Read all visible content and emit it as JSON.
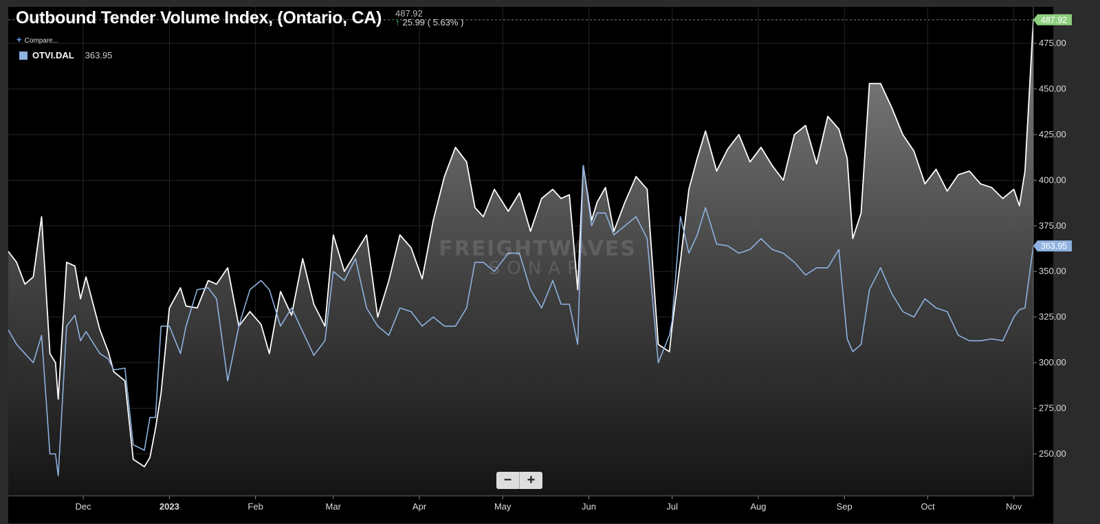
{
  "header": {
    "title": "Outbound Tender Volume Index, (Ontario, CA)",
    "last_value": "487.92",
    "change": "25.99",
    "change_pct": "( 5.63% )",
    "compare_label": "Compare..."
  },
  "legend": {
    "symbol": "OTVI.DAL",
    "value": "363.95"
  },
  "watermark": {
    "line1": "FREIGHTWAVES",
    "line2": "SONAR"
  },
  "zoom": {
    "minus": "−",
    "plus": "+"
  },
  "colors": {
    "background": "#000000",
    "primary_line": "#ffffff",
    "secondary_line": "#8fb2e0",
    "last_tag": "#8fcf80",
    "secondary_tag": "#8fb2e0"
  },
  "chart_data": {
    "type": "area",
    "title": "Outbound Tender Volume Index, (Ontario, CA)",
    "y_axis_position": "right",
    "ylim": [
      227,
      495
    ],
    "y_ticks": [
      250,
      275,
      300,
      325,
      350,
      375,
      400,
      425,
      450,
      475
    ],
    "y_tick_labels": [
      "250.00",
      "275.00",
      "300.00",
      "325.00",
      "350.00",
      "375.00",
      "400.00",
      "425.00",
      "450.00",
      "475.00"
    ],
    "x_range": [
      "2022-11-04",
      "2023-11-08"
    ],
    "x_ticks": [
      {
        "date": "2022-12-01",
        "label": "Dec"
      },
      {
        "date": "2023-01-01",
        "label": "2023"
      },
      {
        "date": "2023-02-01",
        "label": "Feb"
      },
      {
        "date": "2023-03-01",
        "label": "Mar"
      },
      {
        "date": "2023-04-01",
        "label": "Apr"
      },
      {
        "date": "2023-05-01",
        "label": "May"
      },
      {
        "date": "2023-06-01",
        "label": "Jun"
      },
      {
        "date": "2023-07-01",
        "label": "Jul"
      },
      {
        "date": "2023-08-01",
        "label": "Aug"
      },
      {
        "date": "2023-09-01",
        "label": "Sep"
      },
      {
        "date": "2023-10-01",
        "label": "Oct"
      },
      {
        "date": "2023-11-01",
        "label": "Nov"
      }
    ],
    "grid": true,
    "series": [
      {
        "name": "Outbound Tender Volume Index, (Ontario, CA)",
        "style": "area",
        "last_value_label": "487.92",
        "x": [
          "2022-11-04",
          "2022-11-07",
          "2022-11-10",
          "2022-11-13",
          "2022-11-16",
          "2022-11-19",
          "2022-11-21",
          "2022-11-22",
          "2022-11-25",
          "2022-11-28",
          "2022-11-30",
          "2022-12-02",
          "2022-12-07",
          "2022-12-10",
          "2022-12-12",
          "2022-12-16",
          "2022-12-19",
          "2022-12-23",
          "2022-12-25",
          "2022-12-27",
          "2022-12-29",
          "2023-01-01",
          "2023-01-05",
          "2023-01-07",
          "2023-01-11",
          "2023-01-15",
          "2023-01-18",
          "2023-01-22",
          "2023-01-26",
          "2023-01-30",
          "2023-02-03",
          "2023-02-06",
          "2023-02-10",
          "2023-02-14",
          "2023-02-18",
          "2023-02-22",
          "2023-02-26",
          "2023-03-01",
          "2023-03-05",
          "2023-03-09",
          "2023-03-13",
          "2023-03-17",
          "2023-03-21",
          "2023-03-25",
          "2023-03-29",
          "2023-04-02",
          "2023-04-06",
          "2023-04-10",
          "2023-04-14",
          "2023-04-18",
          "2023-04-21",
          "2023-04-24",
          "2023-04-28",
          "2023-05-03",
          "2023-05-07",
          "2023-05-11",
          "2023-05-15",
          "2023-05-19",
          "2023-05-22",
          "2023-05-25",
          "2023-05-28",
          "2023-05-30",
          "2023-06-02",
          "2023-06-04",
          "2023-06-07",
          "2023-06-10",
          "2023-06-14",
          "2023-06-18",
          "2023-06-22",
          "2023-06-26",
          "2023-06-30",
          "2023-07-01",
          "2023-07-04",
          "2023-07-07",
          "2023-07-10",
          "2023-07-13",
          "2023-07-17",
          "2023-07-21",
          "2023-07-25",
          "2023-07-29",
          "2023-08-02",
          "2023-08-06",
          "2023-08-10",
          "2023-08-14",
          "2023-08-18",
          "2023-08-22",
          "2023-08-26",
          "2023-08-30",
          "2023-09-02",
          "2023-09-04",
          "2023-09-07",
          "2023-09-10",
          "2023-09-14",
          "2023-09-18",
          "2023-09-22",
          "2023-09-26",
          "2023-09-30",
          "2023-10-04",
          "2023-10-08",
          "2023-10-12",
          "2023-10-16",
          "2023-10-20",
          "2023-10-24",
          "2023-10-28",
          "2023-11-01",
          "2023-11-03",
          "2023-11-05",
          "2023-11-08"
        ],
        "y": [
          361,
          355,
          343,
          347,
          380,
          305,
          300,
          280,
          355,
          353,
          335,
          347,
          318,
          306,
          295,
          290,
          247,
          243,
          248,
          264,
          283,
          330,
          341,
          331,
          330,
          345,
          343,
          352,
          320,
          328,
          321,
          305,
          339,
          326,
          357,
          332,
          320,
          370,
          350,
          360,
          370,
          325,
          345,
          370,
          363,
          346,
          378,
          402,
          418,
          410,
          385,
          380,
          395,
          383,
          393,
          372,
          390,
          395,
          390,
          392,
          340,
          408,
          378,
          388,
          396,
          372,
          388,
          402,
          395,
          310,
          306,
          320,
          356,
          395,
          412,
          427,
          405,
          417,
          425,
          410,
          418,
          408,
          400,
          425,
          430,
          409,
          435,
          428,
          412,
          368,
          382,
          453,
          453,
          440,
          425,
          416,
          398,
          406,
          394,
          403,
          405,
          398,
          396,
          390,
          395,
          386,
          405,
          487.92
        ]
      },
      {
        "name": "OTVI.DAL",
        "style": "line",
        "last_value_label": "363.95",
        "x": [
          "2022-11-04",
          "2022-11-07",
          "2022-11-10",
          "2022-11-13",
          "2022-11-16",
          "2022-11-19",
          "2022-11-21",
          "2022-11-22",
          "2022-11-25",
          "2022-11-28",
          "2022-11-30",
          "2022-12-02",
          "2022-12-07",
          "2022-12-10",
          "2022-12-12",
          "2022-12-16",
          "2022-12-19",
          "2022-12-23",
          "2022-12-25",
          "2022-12-27",
          "2022-12-29",
          "2023-01-01",
          "2023-01-05",
          "2023-01-07",
          "2023-01-11",
          "2023-01-15",
          "2023-01-18",
          "2023-01-22",
          "2023-01-26",
          "2023-01-30",
          "2023-02-03",
          "2023-02-06",
          "2023-02-10",
          "2023-02-14",
          "2023-02-18",
          "2023-02-22",
          "2023-02-26",
          "2023-03-01",
          "2023-03-05",
          "2023-03-09",
          "2023-03-13",
          "2023-03-17",
          "2023-03-21",
          "2023-03-25",
          "2023-03-29",
          "2023-04-02",
          "2023-04-06",
          "2023-04-10",
          "2023-04-14",
          "2023-04-18",
          "2023-04-21",
          "2023-04-24",
          "2023-04-28",
          "2023-05-03",
          "2023-05-07",
          "2023-05-11",
          "2023-05-15",
          "2023-05-19",
          "2023-05-22",
          "2023-05-25",
          "2023-05-28",
          "2023-05-30",
          "2023-06-02",
          "2023-06-04",
          "2023-06-07",
          "2023-06-10",
          "2023-06-14",
          "2023-06-18",
          "2023-06-22",
          "2023-06-26",
          "2023-06-30",
          "2023-07-01",
          "2023-07-04",
          "2023-07-07",
          "2023-07-10",
          "2023-07-13",
          "2023-07-17",
          "2023-07-21",
          "2023-07-25",
          "2023-07-29",
          "2023-08-02",
          "2023-08-06",
          "2023-08-10",
          "2023-08-14",
          "2023-08-18",
          "2023-08-22",
          "2023-08-26",
          "2023-08-30",
          "2023-09-02",
          "2023-09-04",
          "2023-09-07",
          "2023-09-10",
          "2023-09-14",
          "2023-09-18",
          "2023-09-22",
          "2023-09-26",
          "2023-09-30",
          "2023-10-04",
          "2023-10-08",
          "2023-10-12",
          "2023-10-16",
          "2023-10-20",
          "2023-10-24",
          "2023-10-28",
          "2023-11-01",
          "2023-11-03",
          "2023-11-05",
          "2023-11-08"
        ],
        "y": [
          318,
          310,
          305,
          300,
          315,
          250,
          250,
          238,
          320,
          326,
          312,
          317,
          305,
          302,
          296,
          297,
          255,
          252,
          270,
          270,
          320,
          320,
          305,
          320,
          340,
          341,
          335,
          290,
          320,
          340,
          345,
          340,
          320,
          330,
          317,
          304,
          312,
          350,
          345,
          357,
          330,
          320,
          315,
          330,
          328,
          320,
          325,
          320,
          320,
          330,
          355,
          355,
          350,
          360,
          360,
          340,
          330,
          345,
          332,
          332,
          310,
          408,
          375,
          382,
          382,
          370,
          375,
          380,
          368,
          300,
          315,
          323,
          380,
          360,
          370,
          385,
          365,
          364,
          360,
          362,
          368,
          362,
          360,
          355,
          348,
          352,
          352,
          362,
          313,
          306,
          310,
          340,
          352,
          338,
          328,
          325,
          335,
          330,
          328,
          315,
          312,
          312,
          313,
          312,
          325,
          329,
          330,
          363.95
        ]
      }
    ]
  }
}
